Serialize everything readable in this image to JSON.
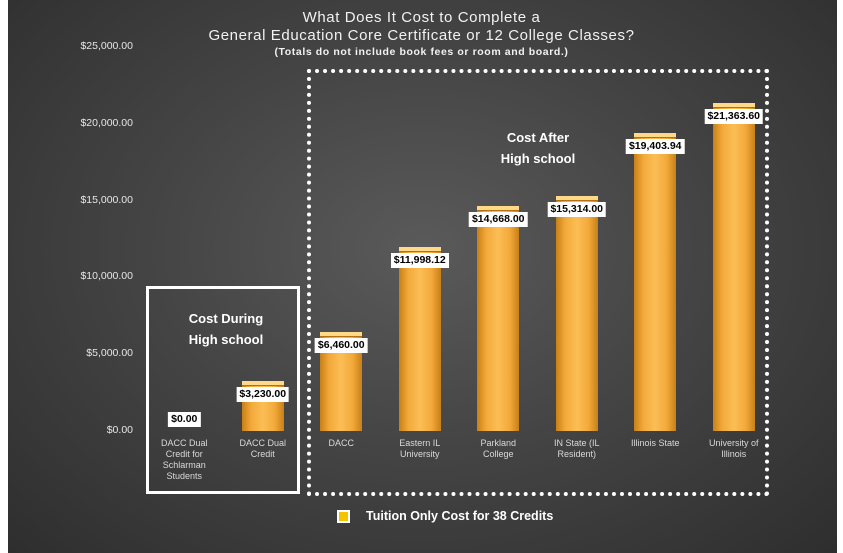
{
  "chart_data": {
    "type": "bar",
    "title": "What Does It Cost to Complete a",
    "title_line2": "General Education Core Certificate or 12 College Classes?",
    "subtitle": "(Totals do not include book fees or room and board.)",
    "categories": [
      [
        "DACC Dual",
        "Credit for",
        "Schlarman",
        "Students"
      ],
      [
        "DACC Dual",
        "Credit"
      ],
      [
        "DACC"
      ],
      [
        "Eastern IL",
        "University"
      ],
      [
        "Parkland",
        "College"
      ],
      [
        "IN State (IL",
        "Resident)"
      ],
      [
        "Illinois State"
      ],
      [
        "University of",
        "Illinois"
      ]
    ],
    "series": [
      {
        "name": "Tuition Only Cost for 38 Credits",
        "values": [
          0,
          3230,
          6460,
          11998.12,
          14668,
          15314,
          19403.94,
          21363.6
        ],
        "labels": [
          "$0.00",
          "$3,230.00",
          "$6,460.00",
          "$11,998.12",
          "$14,668.00",
          "$15,314.00",
          "$19,403.94",
          "$21,363.60"
        ]
      }
    ],
    "ylim": [
      0,
      25000
    ],
    "yticks": [
      "$0.00",
      "$5,000.00",
      "$10,000.00",
      "$15,000.00",
      "$20,000.00",
      "$25,000.00"
    ],
    "ytick_values": [
      0,
      5000,
      10000,
      15000,
      20000,
      25000
    ],
    "grid": false,
    "legend_position": "bottom",
    "annotations": {
      "during": [
        "Cost During",
        "High school"
      ],
      "after": [
        "Cost After",
        "High school"
      ]
    },
    "bar_color": "#f5a623",
    "legend_color": "#f5c400"
  }
}
